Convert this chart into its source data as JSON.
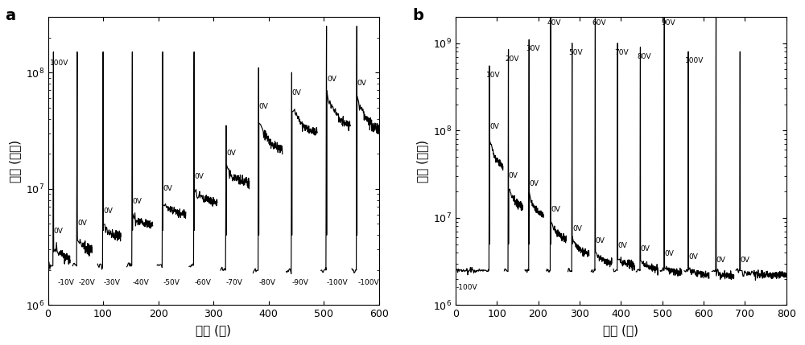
{
  "panel_a": {
    "panel_label": "a",
    "xlabel": "时间 (秒)",
    "ylabel": "电阵 (欧姆)",
    "xlim": [
      0,
      600
    ],
    "ylim": [
      1000000.0,
      300000000.0
    ],
    "yticks": [
      1000000.0,
      10000000.0,
      100000000.0
    ],
    "cycles": [
      {
        "t0": 2,
        "t1": 10,
        "t2": 40,
        "R_peak": 150000000.0,
        "R_base": 2200000.0,
        "R_rs": 3200000.0,
        "R_re": 2500000.0,
        "lbl_top": "100V",
        "lbl_0v": "0V",
        "lbl_bot": "-10V",
        "lbl_bot_x": 18
      },
      {
        "t0": 45,
        "t1": 53,
        "t2": 80,
        "R_peak": 150000000.0,
        "R_base": 2200000.0,
        "R_rs": 3800000.0,
        "R_re": 3000000.0,
        "lbl_top": null,
        "lbl_0v": "0V",
        "lbl_bot": "-20V",
        "lbl_bot_x": 55
      },
      {
        "t0": 90,
        "t1": 100,
        "t2": 132,
        "R_peak": 150000000.0,
        "R_base": 2200000.0,
        "R_rs": 4800000.0,
        "R_re": 3800000.0,
        "lbl_top": null,
        "lbl_0v": "0V",
        "lbl_bot": "-30V",
        "lbl_bot_x": 100
      },
      {
        "t0": 143,
        "t1": 153,
        "t2": 190,
        "R_peak": 150000000.0,
        "R_base": 2200000.0,
        "R_rs": 5800000.0,
        "R_re": 4800000.0,
        "lbl_top": null,
        "lbl_0v": "0V",
        "lbl_bot": "-40V",
        "lbl_bot_x": 153
      },
      {
        "t0": 198,
        "t1": 208,
        "t2": 250,
        "R_peak": 150000000.0,
        "R_base": 2200000.0,
        "R_rs": 7500000.0,
        "R_re": 6000000.0,
        "lbl_top": null,
        "lbl_0v": "0V",
        "lbl_bot": "-50V",
        "lbl_bot_x": 208
      },
      {
        "t0": 256,
        "t1": 265,
        "t2": 307,
        "R_peak": 150000000.0,
        "R_base": 2200000.0,
        "R_rs": 9500000.0,
        "R_re": 7500000.0,
        "lbl_top": null,
        "lbl_0v": "0V",
        "lbl_bot": "-60V",
        "lbl_bot_x": 265
      },
      {
        "t0": 313,
        "t1": 323,
        "t2": 365,
        "R_peak": 35000000.0,
        "R_base": 2000000.0,
        "R_rs": 15000000.0,
        "R_re": 11000000.0,
        "lbl_top": null,
        "lbl_0v": "0V",
        "lbl_bot": "-70V",
        "lbl_bot_x": 323
      },
      {
        "t0": 372,
        "t1": 382,
        "t2": 425,
        "R_peak": 110000000.0,
        "R_base": 2000000.0,
        "R_rs": 38000000.0,
        "R_re": 20000000.0,
        "lbl_top": null,
        "lbl_0v": "0V",
        "lbl_bot": "-80V",
        "lbl_bot_x": 382
      },
      {
        "t0": 432,
        "t1": 442,
        "t2": 488,
        "R_peak": 100000000.0,
        "R_base": 2000000.0,
        "R_rs": 50000000.0,
        "R_re": 28000000.0,
        "lbl_top": null,
        "lbl_0v": "0V",
        "lbl_bot": "-90V",
        "lbl_bot_x": 442
      },
      {
        "t0": 495,
        "t1": 505,
        "t2": 548,
        "R_peak": 250000000.0,
        "R_base": 2000000.0,
        "R_rs": 65000000.0,
        "R_re": 32000000.0,
        "lbl_top": null,
        "lbl_0v": "0V",
        "lbl_bot": "-100V",
        "lbl_bot_x": 505
      },
      {
        "t0": 551,
        "t1": 560,
        "t2": 600,
        "R_peak": 250000000.0,
        "R_base": 2000000.0,
        "R_rs": 60000000.0,
        "R_re": 30000000.0,
        "lbl_top": null,
        "lbl_0v": "0V",
        "lbl_bot": "-100V",
        "lbl_bot_x": 562
      }
    ]
  },
  "panel_b": {
    "panel_label": "b",
    "xlabel": "时间 (秒)",
    "ylabel": "电阵 (欧姆)",
    "xlim": [
      0,
      800
    ],
    "ylim": [
      1000000.0,
      2000000000.0
    ],
    "yticks": [
      1000000.0,
      10000000.0,
      100000000.0,
      1000000000.0
    ],
    "pre_segment": {
      "t0": 2,
      "t1": 58,
      "t2": 70,
      "R_base": 2500000.0,
      "lbl": "-100V"
    },
    "cycles": [
      {
        "t0": 72,
        "t1": 82,
        "t2": 115,
        "R_peak": 550000000.0,
        "R_base": 2500000.0,
        "R_rs": 80000000.0,
        "R_re": 35000000.0,
        "lbl_top": "10V",
        "lbl_0v": "0V"
      },
      {
        "t0": 118,
        "t1": 128,
        "t2": 163,
        "R_peak": 850000000.0,
        "R_base": 2500000.0,
        "R_rs": 22000000.0,
        "R_re": 13000000.0,
        "lbl_top": "20V",
        "lbl_0v": "0V"
      },
      {
        "t0": 168,
        "t1": 178,
        "t2": 213,
        "R_peak": 1100000000.0,
        "R_base": 2500000.0,
        "R_rs": 18000000.0,
        "R_re": 10000000.0,
        "lbl_top": "30V",
        "lbl_0v": "0V"
      },
      {
        "t0": 220,
        "t1": 230,
        "t2": 268,
        "R_peak": 2200000000.0,
        "R_base": 2500000.0,
        "R_rs": 9000000.0,
        "R_re": 5500000.0,
        "lbl_top": "40V",
        "lbl_0v": "0V"
      },
      {
        "t0": 272,
        "t1": 282,
        "t2": 323,
        "R_peak": 1000000000.0,
        "R_base": 2500000.0,
        "R_rs": 5500000.0,
        "R_re": 3800000.0,
        "lbl_top": "50V",
        "lbl_0v": "0V"
      },
      {
        "t0": 328,
        "t1": 338,
        "t2": 378,
        "R_peak": 2200000000.0,
        "R_base": 2500000.0,
        "R_rs": 4000000.0,
        "R_re": 3000000.0,
        "lbl_top": "60V",
        "lbl_0v": "0V"
      },
      {
        "t0": 382,
        "t1": 392,
        "t2": 433,
        "R_peak": 1000000000.0,
        "R_base": 2500000.0,
        "R_rs": 3500000.0,
        "R_re": 2800000.0,
        "lbl_top": "70V",
        "lbl_0v": "0V"
      },
      {
        "t0": 437,
        "t1": 447,
        "t2": 490,
        "R_peak": 900000000.0,
        "R_base": 2500000.0,
        "R_rs": 3200000.0,
        "R_re": 2500000.0,
        "lbl_top": "80V",
        "lbl_0v": "0V"
      },
      {
        "t0": 495,
        "t1": 505,
        "t2": 547,
        "R_peak": 2200000000.0,
        "R_base": 2500000.0,
        "R_rs": 2800000.0,
        "R_re": 2300000.0,
        "lbl_top": "90V",
        "lbl_0v": "0V"
      },
      {
        "t0": 553,
        "t1": 563,
        "t2": 613,
        "R_peak": 800000000.0,
        "R_base": 2500000.0,
        "R_rs": 2600000.0,
        "R_re": 2200000.0,
        "lbl_top": "100V",
        "lbl_0v": "0V"
      },
      {
        "t0": 620,
        "t1": 630,
        "t2": 673,
        "R_peak": 2200000000.0,
        "R_base": 2500000.0,
        "R_rs": 2400000.0,
        "R_re": 2100000.0,
        "lbl_top": null,
        "lbl_0v": "0V"
      },
      {
        "t0": 678,
        "t1": 688,
        "t2": 800,
        "R_peak": 800000000.0,
        "R_base": 2500000.0,
        "R_rs": 2400000.0,
        "R_re": 2200000.0,
        "lbl_top": null,
        "lbl_0v": "0V"
      }
    ]
  },
  "lc": "#000000",
  "ann_fs": 6.5,
  "axis_fs": 11,
  "tick_fs": 9,
  "lw": 0.85
}
